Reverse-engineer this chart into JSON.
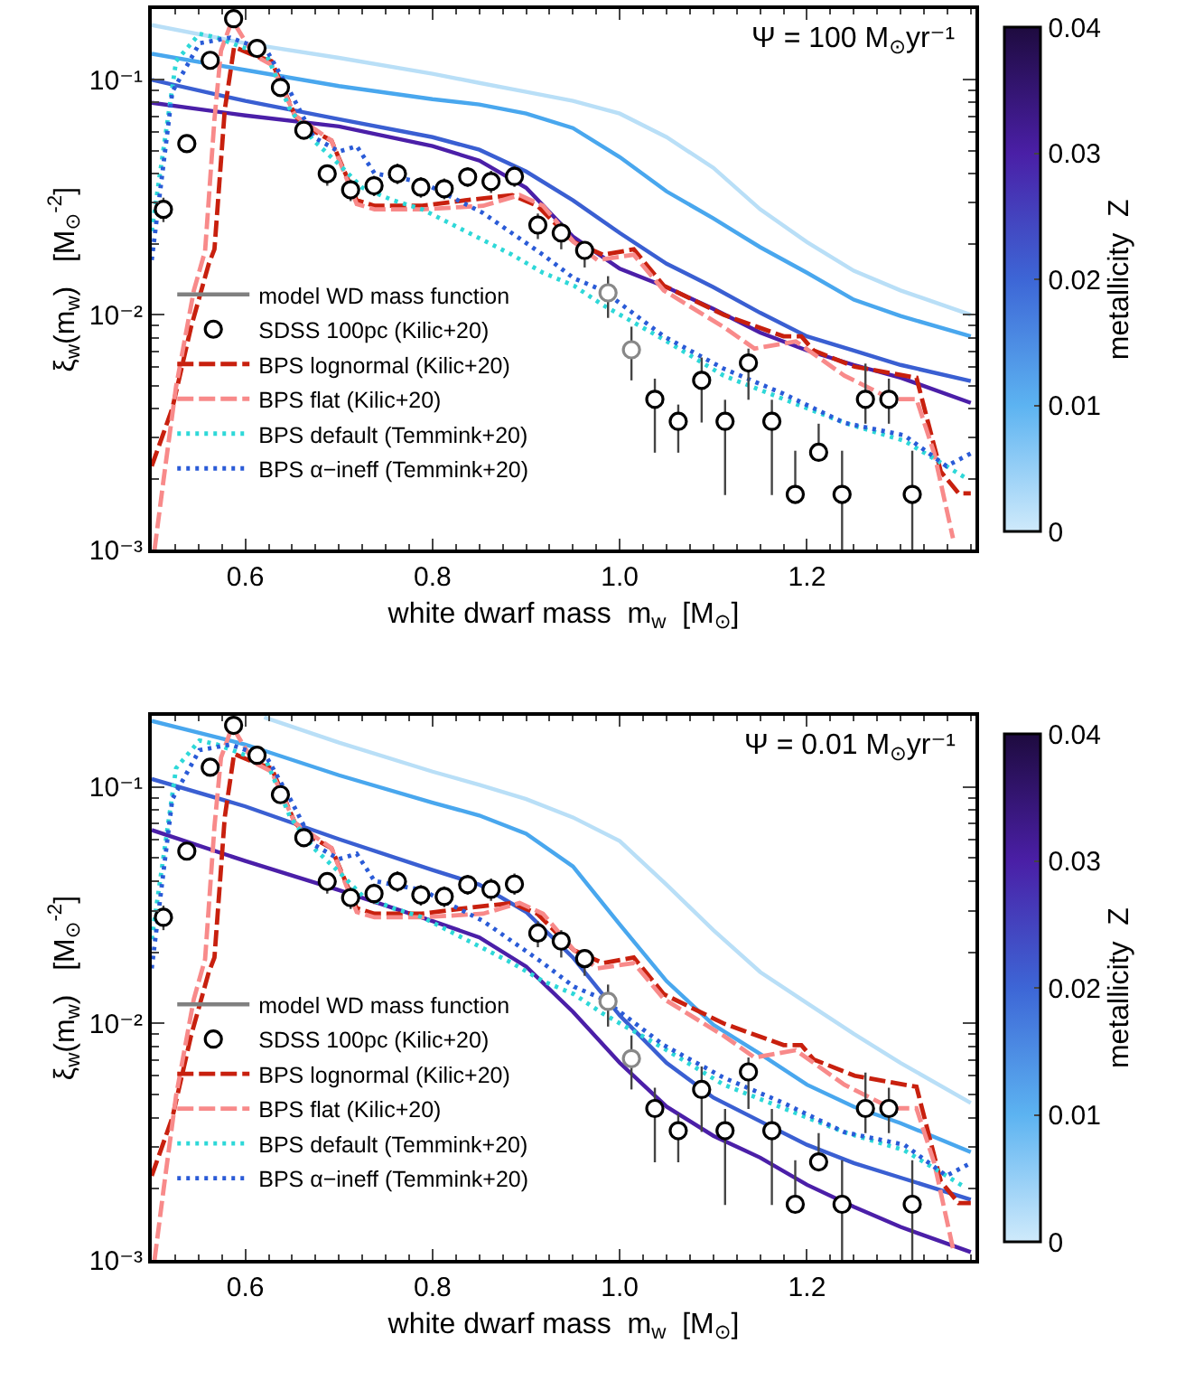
{
  "chart_data": [
    {
      "type": "line",
      "annotations": [
        "Ψ = 100 M$_{⊙}$yr⁻¹"
      ],
      "xlabel": "white dwarf mass  m$_{w}$  [M$_{⊙}$]",
      "ylabel": "ξ$_{w}$(m$_{w}$)   [M$_{⊙}$$^{-2}$]",
      "clabel": "metallicity  Z",
      "clim": [
        0,
        0.04
      ],
      "cticks": [
        0,
        0.01,
        0.02,
        0.03,
        0.04
      ],
      "log": "y",
      "legend": "bottom left",
      "xlim": [
        0.5,
        1.38
      ],
      "xticks": [
        {
          "value": 0.6,
          "label": "0.6"
        },
        {
          "value": 0.8,
          "label": "0.8"
        },
        {
          "value": 1.0,
          "label": "1.0"
        },
        {
          "value": 1.2,
          "label": "1.2"
        }
      ],
      "ylim": [
        0.001,
        0.2
      ],
      "yticks": [
        {
          "value": 0.001,
          "label": "10⁻³"
        },
        {
          "value": 0.01,
          "label": "10⁻²"
        },
        {
          "value": 0.1,
          "label": "10⁻¹"
        }
      ],
      "series": [
        {
          "name": "model WD mass function",
          "color": "#808080"
        },
        {
          "color": "#b9dff7",
          "x": [
            0.5,
            0.6,
            0.7,
            0.8,
            0.85,
            0.9,
            0.95,
            1.0,
            1.05,
            1.1,
            1.15,
            1.2,
            1.25,
            1.3,
            1.375
          ],
          "values": [
            0.171,
            0.143,
            0.124,
            0.106,
            0.097,
            0.0888,
            0.0813,
            0.0718,
            0.057,
            0.0422,
            0.0281,
            0.0204,
            0.0154,
            0.0127,
            0.01
          ]
        },
        {
          "type": "line",
          "color": "#49a7ee",
          "x": [
            0.5,
            0.6,
            0.7,
            0.8,
            0.85,
            0.9,
            0.95,
            1.0,
            1.05,
            1.1,
            1.15,
            1.2,
            1.25,
            1.3,
            1.375
          ],
          "values": [
            0.129,
            0.11,
            0.094,
            0.0827,
            0.0785,
            0.0718,
            0.0623,
            0.0469,
            0.0335,
            0.0257,
            0.0194,
            0.0151,
            0.0116,
            0.00988,
            0.0081
          ]
        },
        {
          "type": "line",
          "color": "#3a5fd2",
          "x": [
            0.5,
            0.6,
            0.7,
            0.8,
            0.85,
            0.9,
            0.95,
            1.0,
            1.05,
            1.1,
            1.15,
            1.2,
            1.25,
            1.3,
            1.375
          ],
          "values": [
            0.1,
            0.0813,
            0.068,
            0.057,
            0.0504,
            0.0407,
            0.0307,
            0.0223,
            0.0165,
            0.0131,
            0.0102,
            0.0081,
            0.00705,
            0.00612,
            0.00522
          ]
        },
        {
          "type": "line",
          "color": "#4b1fa8",
          "x": [
            0.5,
            0.6,
            0.7,
            0.8,
            0.85,
            0.9,
            0.95,
            1.0,
            1.05,
            1.1,
            1.15,
            1.2,
            1.25,
            1.3,
            1.375
          ],
          "values": [
            0.0798,
            0.0705,
            0.0633,
            0.0522,
            0.0453,
            0.0347,
            0.0215,
            0.0157,
            0.0131,
            0.0106,
            0.0084,
            0.00705,
            0.00612,
            0.0054,
            0.00422
          ]
        },
        {
          "type": "line",
          "name": "BPS lognormal (Kilic+20)",
          "color": "#c8200e",
          "line_style": "dashed",
          "x": [
            0.5,
            0.522,
            0.542,
            0.561,
            0.567,
            0.578,
            0.588,
            0.609,
            0.628,
            0.653,
            0.667,
            0.692,
            0.719,
            0.738,
            0.789,
            0.835,
            0.885,
            0.912,
            0.951,
            0.982,
            1.015,
            1.047,
            1.111,
            1.175,
            1.194,
            1.207,
            1.251,
            1.317,
            1.343,
            1.362,
            1.375
          ],
          "values": [
            0.00227,
            0.004,
            0.00887,
            0.0165,
            0.019,
            0.0744,
            0.138,
            0.127,
            0.12,
            0.0705,
            0.0623,
            0.0551,
            0.0307,
            0.0291,
            0.0291,
            0.0307,
            0.0323,
            0.0291,
            0.0204,
            0.018,
            0.019,
            0.0133,
            0.01,
            0.0081,
            0.0081,
            0.00705,
            0.00601,
            0.0054,
            0.00215,
            0.00174,
            0.00174
          ]
        },
        {
          "type": "line",
          "name": "BPS flat (Kilic+20)",
          "color": "#f88a8a",
          "line_style": "dashed",
          "x": [
            0.503,
            0.513,
            0.526,
            0.545,
            0.557,
            0.567,
            0.574,
            0.586,
            0.609,
            0.628,
            0.653,
            0.692,
            0.719,
            0.738,
            0.789,
            0.854,
            0.893,
            0.918,
            0.951,
            0.976,
            1.015,
            1.047,
            1.111,
            1.144,
            1.188,
            1.24,
            1.29,
            1.317,
            1.336,
            1.356
          ],
          "values": [
            0.001,
            0.00204,
            0.00495,
            0.0127,
            0.0187,
            0.068,
            0.133,
            0.18,
            0.127,
            0.116,
            0.0705,
            0.0551,
            0.0296,
            0.0281,
            0.0281,
            0.0291,
            0.0323,
            0.0291,
            0.0204,
            0.0171,
            0.018,
            0.0127,
            0.00887,
            0.00718,
            0.00771,
            0.00551,
            0.00438,
            0.00438,
            0.00257,
            0.00112
          ]
        },
        {
          "type": "line",
          "name": "BPS default (Temmink+20)",
          "color": "#2ed8d8",
          "line_style": "dotted",
          "x": [
            0.5,
            0.513,
            0.526,
            0.551,
            0.57,
            0.596,
            0.623,
            0.648,
            0.673,
            0.7,
            0.725,
            0.758,
            0.789,
            0.835,
            0.885,
            0.918,
            0.951,
            0.982,
            1.047,
            1.111,
            1.175,
            1.24,
            1.304,
            1.336,
            1.368
          ],
          "values": [
            0.0227,
            0.0522,
            0.12,
            0.157,
            0.151,
            0.138,
            0.127,
            0.0744,
            0.0551,
            0.0437,
            0.0347,
            0.0307,
            0.0281,
            0.0227,
            0.018,
            0.0151,
            0.0133,
            0.011,
            0.00785,
            0.00551,
            0.00438,
            0.00347,
            0.00291,
            0.00244,
            0.00204
          ]
        },
        {
          "type": "line",
          "name": "BPS α−ineff (Temmink+20)",
          "color": "#2a5bd7",
          "line_style": "dotted",
          "x": [
            0.5,
            0.522,
            0.551,
            0.584,
            0.623,
            0.648,
            0.673,
            0.7,
            0.719,
            0.738,
            0.789,
            0.854,
            0.918,
            0.951,
            0.982,
            1.047,
            1.111,
            1.175,
            1.24,
            1.304,
            1.349,
            1.375
          ],
          "values": [
            0.0171,
            0.0888,
            0.143,
            0.151,
            0.133,
            0.0888,
            0.057,
            0.0495,
            0.0522,
            0.04,
            0.0366,
            0.0271,
            0.018,
            0.0143,
            0.0127,
            0.0081,
            0.0059,
            0.00461,
            0.00347,
            0.00307,
            0.00227,
            0.00257
          ]
        },
        {
          "type": "scatter",
          "name": "SDSS 100pc (Kilic+20)",
          "marker": "circle",
          "x": [
            0.5125,
            0.5375,
            0.5625,
            0.5875,
            0.6125,
            0.6375,
            0.6625,
            0.6875,
            0.7125,
            0.7375,
            0.7625,
            0.7875,
            0.8125,
            0.8375,
            0.8625,
            0.8875,
            0.9125,
            0.9375,
            0.9625,
            0.9875,
            1.0125,
            1.0375,
            1.0625,
            1.0875,
            1.1125,
            1.1375,
            1.1625,
            1.1875,
            1.2125,
            1.2375,
            1.2625,
            1.2875,
            1.3125
          ],
          "values": [
            0.0281,
            0.0535,
            0.121,
            0.182,
            0.136,
            0.0927,
            0.061,
            0.0398,
            0.034,
            0.0354,
            0.0398,
            0.0349,
            0.0344,
            0.0386,
            0.0369,
            0.0388,
            0.0241,
            0.0223,
            0.0188,
            0.0124,
            0.0071,
            0.00437,
            0.00352,
            0.00526,
            0.00352,
            0.00624,
            0.00352,
            0.00172,
            0.0026,
            0.00172,
            0.00437,
            0.00437,
            0.00172
          ],
          "errors": [
            [
              0.0248,
              0.0315
            ],
            [
              0.0497,
              0.0575
            ],
            [
              0.115,
              0.127
            ],
            [
              0.176,
              0.188
            ],
            [
              0.13,
              0.142
            ],
            [
              0.088,
              0.098
            ],
            [
              0.057,
              0.066
            ],
            [
              0.0354,
              0.0435
            ],
            [
              0.0305,
              0.0376
            ],
            [
              0.032,
              0.039
            ],
            [
              0.036,
              0.044
            ],
            [
              0.0315,
              0.0385
            ],
            [
              0.031,
              0.038
            ],
            [
              0.035,
              0.0425
            ],
            [
              0.033,
              0.041
            ],
            [
              0.035,
              0.043
            ],
            [
              0.021,
              0.027
            ],
            [
              0.019,
              0.0248
            ],
            [
              0.0159,
              0.0202
            ],
            [
              0.0097,
              0.0146
            ],
            [
              0.00526,
              0.0089
            ],
            [
              0.00259,
              0.00535
            ],
            [
              0.00259,
              0.00415
            ],
            [
              0.00348,
              0.00658
            ],
            [
              0.00171,
              0.00435
            ],
            [
              0.00435,
              0.00718
            ],
            [
              0.00171,
              0.00435
            ],
            [
              0.00172,
              0.00264
            ],
            [
              0.00241,
              0.00344
            ],
            [
              0.001,
              0.00264
            ],
            [
              0.00344,
              0.0062
            ],
            [
              0.00344,
              0.00535
            ],
            [
              0.001,
              0.00264
            ]
          ],
          "colors": [
            "#000000",
            "#000000",
            "#000000",
            "#000000",
            "#000000",
            "#000000",
            "#000000",
            "#000000",
            "#000000",
            "#000000",
            "#000000",
            "#000000",
            "#000000",
            "#000000",
            "#000000",
            "#000000",
            "#000000",
            "#000000",
            "#000000",
            "#888888",
            "#888888",
            "#000000",
            "#000000",
            "#000000",
            "#000000",
            "#000000",
            "#000000",
            "#000000",
            "#000000",
            "#000000",
            "#000000",
            "#000000",
            "#000000"
          ]
        }
      ]
    },
    {
      "type": "line",
      "annotations": [
        "Ψ = 0.01 M$_{⊙}$yr⁻¹"
      ],
      "xlabel": "white dwarf mass  m$_{w}$  [M$_{⊙}$]",
      "ylabel": "ξ$_{w}$(m$_{w}$)   [M$_{⊙}$$^{-2}$]",
      "clabel": "metallicity  Z",
      "clim": [
        0,
        0.04
      ],
      "cticks": [
        0,
        0.01,
        0.02,
        0.03,
        0.04
      ],
      "log": "y",
      "legend": "bottom left",
      "xlim": [
        0.5,
        1.38
      ],
      "xticks": [
        {
          "value": 0.6,
          "label": "0.6"
        },
        {
          "value": 0.8,
          "label": "0.8"
        },
        {
          "value": 1.0,
          "label": "1.0"
        },
        {
          "value": 1.2,
          "label": "1.2"
        }
      ],
      "ylim": [
        0.001,
        0.2
      ],
      "yticks": [
        {
          "value": 0.001,
          "label": "10⁻³"
        },
        {
          "value": 0.01,
          "label": "10⁻²"
        },
        {
          "value": 0.1,
          "label": "10⁻¹"
        }
      ],
      "series": [
        {
          "name": "model WD mass function",
          "color": "#808080"
        },
        {
          "color": "#b9dff7",
          "x": [
            0.62,
            0.7,
            0.8,
            0.85,
            0.9,
            0.95,
            1.0,
            1.05,
            1.1,
            1.15,
            1.2,
            1.25,
            1.3,
            1.375
          ],
          "values": [
            0.197,
            0.154,
            0.116,
            0.102,
            0.0888,
            0.0743,
            0.059,
            0.0386,
            0.0248,
            0.0165,
            0.0122,
            0.00904,
            0.00681,
            0.00461
          ]
        },
        {
          "type": "line",
          "color": "#49a7ee",
          "x": [
            0.5,
            0.6,
            0.7,
            0.8,
            0.85,
            0.9,
            0.95,
            1.0,
            1.05,
            1.1,
            1.15,
            1.2,
            1.25,
            1.3,
            1.375
          ],
          "values": [
            0.19,
            0.151,
            0.112,
            0.0857,
            0.0757,
            0.0634,
            0.0461,
            0.0262,
            0.0151,
            0.00988,
            0.00743,
            0.00551,
            0.00445,
            0.00379,
            0.00286
          ]
        },
        {
          "type": "line",
          "color": "#3a5fd2",
          "x": [
            0.5,
            0.6,
            0.7,
            0.8,
            0.85,
            0.9,
            0.95,
            1.0,
            1.05,
            1.1,
            1.15,
            1.2,
            1.25,
            1.3,
            1.375
          ],
          "values": [
            0.108,
            0.0827,
            0.0601,
            0.0445,
            0.0386,
            0.0296,
            0.019,
            0.0108,
            0.00681,
            0.00486,
            0.00386,
            0.00307,
            0.00257,
            0.00223,
            0.0018
          ]
        },
        {
          "type": "line",
          "color": "#4b1fa8",
          "x": [
            0.5,
            0.6,
            0.7,
            0.8,
            0.85,
            0.9,
            0.95,
            1.0,
            1.05,
            1.1,
            1.15,
            1.2,
            1.25,
            1.3,
            1.375
          ],
          "values": [
            0.0657,
            0.0486,
            0.0366,
            0.0271,
            0.0231,
            0.0174,
            0.0112,
            0.00681,
            0.00445,
            0.00335,
            0.00271,
            0.00208,
            0.00168,
            0.00138,
            0.00108
          ]
        },
        {
          "type": "line",
          "name": "BPS lognormal (Kilic+20)",
          "color": "#c8200e",
          "line_style": "dashed",
          "x": [
            0.5,
            0.522,
            0.542,
            0.561,
            0.567,
            0.578,
            0.588,
            0.609,
            0.628,
            0.653,
            0.667,
            0.692,
            0.719,
            0.738,
            0.789,
            0.835,
            0.885,
            0.912,
            0.951,
            0.982,
            1.015,
            1.047,
            1.111,
            1.175,
            1.194,
            1.207,
            1.251,
            1.317,
            1.343,
            1.362,
            1.375
          ],
          "values": [
            0.00227,
            0.004,
            0.00887,
            0.0165,
            0.019,
            0.0744,
            0.138,
            0.127,
            0.12,
            0.0705,
            0.0623,
            0.0551,
            0.0307,
            0.0291,
            0.0291,
            0.0307,
            0.0323,
            0.0291,
            0.0204,
            0.018,
            0.019,
            0.0133,
            0.01,
            0.0081,
            0.0081,
            0.00705,
            0.00601,
            0.0054,
            0.00215,
            0.00174,
            0.00174
          ]
        },
        {
          "type": "line",
          "name": "BPS flat (Kilic+20)",
          "color": "#f88a8a",
          "line_style": "dashed",
          "x": [
            0.503,
            0.513,
            0.526,
            0.545,
            0.557,
            0.567,
            0.574,
            0.586,
            0.609,
            0.628,
            0.653,
            0.692,
            0.719,
            0.738,
            0.789,
            0.854,
            0.893,
            0.918,
            0.951,
            0.976,
            1.015,
            1.047,
            1.111,
            1.144,
            1.188,
            1.24,
            1.29,
            1.317,
            1.336,
            1.356
          ],
          "values": [
            0.001,
            0.00204,
            0.00495,
            0.0127,
            0.0187,
            0.068,
            0.133,
            0.18,
            0.127,
            0.116,
            0.0705,
            0.0551,
            0.0296,
            0.0281,
            0.0281,
            0.0291,
            0.0323,
            0.0291,
            0.0204,
            0.0171,
            0.018,
            0.0127,
            0.00887,
            0.00718,
            0.00771,
            0.00551,
            0.00438,
            0.00438,
            0.00257,
            0.00112
          ]
        },
        {
          "type": "line",
          "name": "BPS default (Temmink+20)",
          "color": "#2ed8d8",
          "line_style": "dotted",
          "x": [
            0.5,
            0.513,
            0.526,
            0.551,
            0.57,
            0.596,
            0.623,
            0.648,
            0.673,
            0.7,
            0.725,
            0.758,
            0.789,
            0.835,
            0.885,
            0.918,
            0.951,
            0.982,
            1.047,
            1.111,
            1.175,
            1.24,
            1.304,
            1.336,
            1.368
          ],
          "values": [
            0.0227,
            0.0522,
            0.12,
            0.157,
            0.151,
            0.138,
            0.127,
            0.0744,
            0.0551,
            0.0437,
            0.0347,
            0.0307,
            0.0281,
            0.0227,
            0.018,
            0.0151,
            0.0133,
            0.011,
            0.00785,
            0.00551,
            0.00438,
            0.00347,
            0.00291,
            0.00244,
            0.00204
          ]
        },
        {
          "type": "line",
          "name": "BPS α−ineff (Temmink+20)",
          "color": "#2a5bd7",
          "line_style": "dotted",
          "x": [
            0.5,
            0.522,
            0.551,
            0.584,
            0.623,
            0.648,
            0.673,
            0.7,
            0.719,
            0.738,
            0.789,
            0.854,
            0.918,
            0.951,
            0.982,
            1.047,
            1.111,
            1.175,
            1.24,
            1.304,
            1.349,
            1.375
          ],
          "values": [
            0.0171,
            0.0888,
            0.143,
            0.151,
            0.133,
            0.0888,
            0.057,
            0.0495,
            0.0522,
            0.04,
            0.0366,
            0.0271,
            0.018,
            0.0143,
            0.0127,
            0.0081,
            0.0059,
            0.00461,
            0.00347,
            0.00307,
            0.00227,
            0.00257
          ]
        },
        {
          "type": "scatter",
          "name": "SDSS 100pc (Kilic+20)",
          "marker": "circle",
          "x": [
            0.5125,
            0.5375,
            0.5625,
            0.5875,
            0.6125,
            0.6375,
            0.6625,
            0.6875,
            0.7125,
            0.7375,
            0.7625,
            0.7875,
            0.8125,
            0.8375,
            0.8625,
            0.8875,
            0.9125,
            0.9375,
            0.9625,
            0.9875,
            1.0125,
            1.0375,
            1.0625,
            1.0875,
            1.1125,
            1.1375,
            1.1625,
            1.1875,
            1.2125,
            1.2375,
            1.2625,
            1.2875,
            1.3125
          ],
          "values": [
            0.0281,
            0.0535,
            0.121,
            0.182,
            0.136,
            0.0927,
            0.061,
            0.0398,
            0.034,
            0.0354,
            0.0398,
            0.0349,
            0.0344,
            0.0386,
            0.0369,
            0.0388,
            0.0241,
            0.0223,
            0.0188,
            0.0124,
            0.0071,
            0.00437,
            0.00352,
            0.00526,
            0.00352,
            0.00624,
            0.00352,
            0.00172,
            0.0026,
            0.00172,
            0.00437,
            0.00437,
            0.00172
          ],
          "errors": [
            [
              0.0248,
              0.0315
            ],
            [
              0.0497,
              0.0575
            ],
            [
              0.115,
              0.127
            ],
            [
              0.176,
              0.188
            ],
            [
              0.13,
              0.142
            ],
            [
              0.088,
              0.098
            ],
            [
              0.057,
              0.066
            ],
            [
              0.0354,
              0.0435
            ],
            [
              0.0305,
              0.0376
            ],
            [
              0.032,
              0.039
            ],
            [
              0.036,
              0.044
            ],
            [
              0.0315,
              0.0385
            ],
            [
              0.031,
              0.038
            ],
            [
              0.035,
              0.0425
            ],
            [
              0.033,
              0.041
            ],
            [
              0.035,
              0.043
            ],
            [
              0.021,
              0.027
            ],
            [
              0.019,
              0.0248
            ],
            [
              0.0159,
              0.0202
            ],
            [
              0.0097,
              0.0146
            ],
            [
              0.00526,
              0.0089
            ],
            [
              0.00259,
              0.00535
            ],
            [
              0.00259,
              0.00415
            ],
            [
              0.00348,
              0.00658
            ],
            [
              0.00171,
              0.00435
            ],
            [
              0.00435,
              0.00718
            ],
            [
              0.00171,
              0.00435
            ],
            [
              0.00172,
              0.00264
            ],
            [
              0.00241,
              0.00344
            ],
            [
              0.001,
              0.00264
            ],
            [
              0.00344,
              0.0062
            ],
            [
              0.00344,
              0.00535
            ],
            [
              0.001,
              0.00264
            ]
          ],
          "colors": [
            "#000000",
            "#000000",
            "#000000",
            "#000000",
            "#000000",
            "#000000",
            "#000000",
            "#000000",
            "#000000",
            "#000000",
            "#000000",
            "#000000",
            "#000000",
            "#000000",
            "#000000",
            "#000000",
            "#000000",
            "#000000",
            "#000000",
            "#888888",
            "#888888",
            "#000000",
            "#000000",
            "#000000",
            "#000000",
            "#000000",
            "#000000",
            "#000000",
            "#000000",
            "#000000",
            "#000000",
            "#000000",
            "#000000"
          ]
        }
      ]
    }
  ]
}
